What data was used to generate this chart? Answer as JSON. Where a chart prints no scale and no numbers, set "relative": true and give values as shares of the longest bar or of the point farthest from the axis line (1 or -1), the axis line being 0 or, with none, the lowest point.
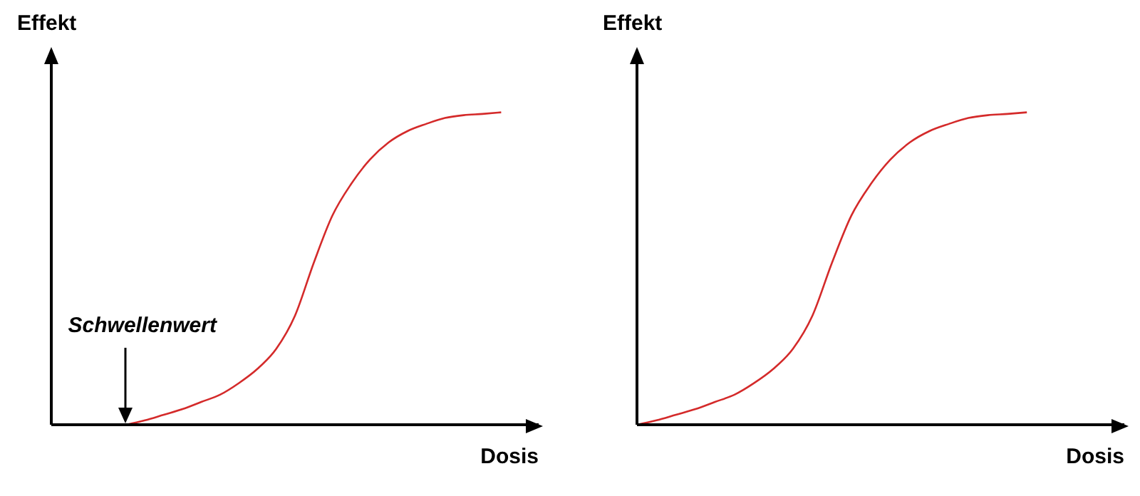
{
  "chart_data": [
    {
      "type": "line",
      "relative": true,
      "xlabel": "Dosis",
      "ylabel": "Effekt",
      "grid": false,
      "legend": false,
      "marker": "none",
      "line_style": "solid",
      "annotations": [
        "Schwellenwert"
      ],
      "categories": [
        null,
        null,
        null,
        null,
        null,
        null,
        null,
        null,
        null,
        null,
        null,
        null,
        null,
        null,
        null,
        null,
        null,
        null,
        null,
        null,
        null,
        null,
        null,
        null,
        null,
        null,
        null
      ],
      "series": [
        {
          "color": "#d42a2a",
          "values": [
            null,
            null,
            null,
            null,
            0,
            0.014,
            0.032,
            0.05,
            0.073,
            0.096,
            0.133,
            0.179,
            0.243,
            0.349,
            0.518,
            0.67,
            0.771,
            0.849,
            0.904,
            0.94,
            0.963,
            0.982,
            0.991,
            0.995,
            1,
            null,
            null
          ]
        }
      ]
    },
    {
      "type": "line",
      "relative": true,
      "xlabel": "Dosis",
      "ylabel": "Effekt",
      "grid": false,
      "legend": false,
      "marker": "none",
      "line_style": "solid",
      "categories": [
        null,
        null,
        null,
        null,
        null,
        null,
        null,
        null,
        null,
        null,
        null,
        null,
        null,
        null,
        null,
        null,
        null,
        null,
        null,
        null,
        null,
        null,
        null,
        null,
        null,
        null
      ],
      "series": [
        {
          "color": "#d42a2a",
          "values": [
            0,
            0.014,
            0.032,
            0.05,
            0.073,
            0.096,
            0.133,
            0.179,
            0.243,
            0.349,
            0.518,
            0.67,
            0.771,
            0.849,
            0.904,
            0.94,
            0.963,
            0.982,
            0.991,
            0.995,
            1,
            null,
            null,
            null,
            null,
            null
          ]
        }
      ]
    }
  ]
}
